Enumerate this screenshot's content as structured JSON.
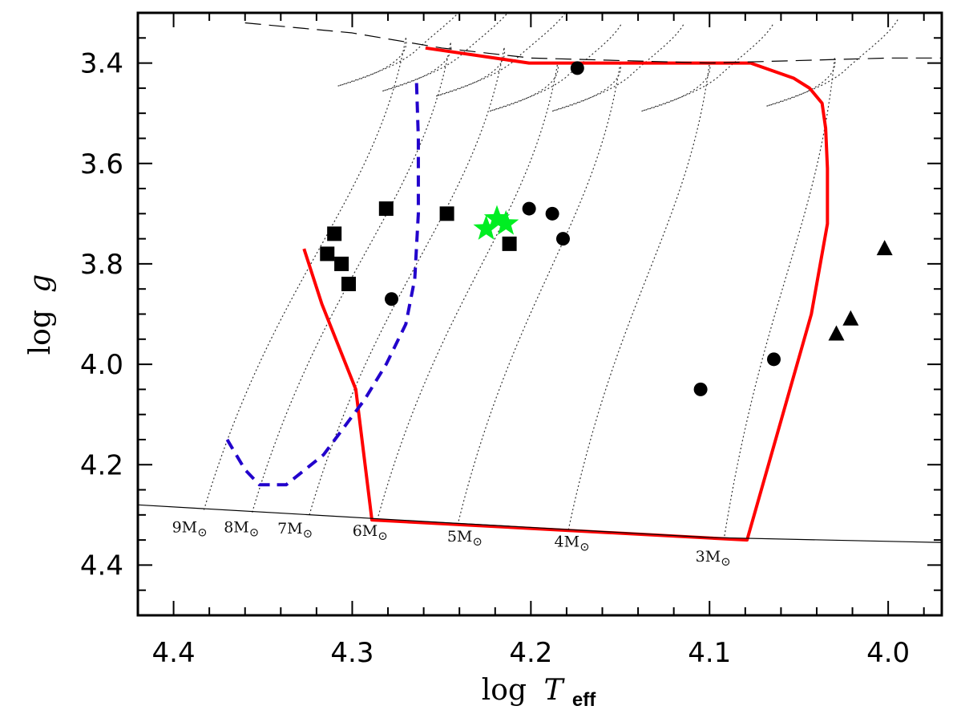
{
  "chart_data": {
    "type": "scatter",
    "title": "",
    "xlabel": {
      "prefix": "log",
      "symbol": "T",
      "subscript": "eff"
    },
    "ylabel": {
      "prefix": "log",
      "symbol": "g"
    },
    "xlim": [
      4.42,
      3.97
    ],
    "ylim": [
      4.5,
      3.3
    ],
    "x_reversed": true,
    "y_reversed": true,
    "x_ticks": [
      "4.4",
      "4.3",
      "4.2",
      "4.1",
      "4.0"
    ],
    "x_tick_values": [
      4.4,
      4.3,
      4.2,
      4.1,
      4.0
    ],
    "y_ticks": [
      "3.4",
      "3.6",
      "3.8",
      "4.0",
      "4.2",
      "4.4"
    ],
    "y_tick_values": [
      3.4,
      3.6,
      3.8,
      4.0,
      4.2,
      4.4
    ],
    "colors": {
      "axes": "#000000",
      "red_boundary": "#ff0000",
      "blue_dashed": "#2200cc",
      "star": "#00ee22",
      "markers": "#000000",
      "tracks": "#333333"
    },
    "series": [
      {
        "name": "squares",
        "marker": "square",
        "x": [
          4.281,
          4.247,
          4.212,
          4.31,
          4.314,
          4.306,
          4.302
        ],
        "y": [
          3.69,
          3.7,
          3.76,
          3.74,
          3.78,
          3.8,
          3.84
        ]
      },
      {
        "name": "circles",
        "marker": "circle",
        "x": [
          4.174,
          4.201,
          4.188,
          4.182,
          4.278,
          4.105,
          4.064
        ],
        "y": [
          3.41,
          3.69,
          3.7,
          3.75,
          3.87,
          4.05,
          3.99
        ]
      },
      {
        "name": "triangles",
        "marker": "triangle",
        "x": [
          4.002,
          4.021,
          4.029
        ],
        "y": [
          3.77,
          3.91,
          3.94
        ]
      },
      {
        "name": "stars",
        "marker": "star",
        "x": [
          4.225,
          4.219,
          4.214
        ],
        "y": [
          3.73,
          3.71,
          3.72
        ]
      }
    ],
    "lines": [
      {
        "name": "red-boundary",
        "style": "solid",
        "x": [
          4.327,
          4.317,
          4.298,
          4.289,
          4.079,
          4.043,
          4.034,
          4.034,
          4.035,
          4.037,
          4.044,
          4.053,
          4.077,
          4.159,
          4.201,
          4.259
        ],
        "y": [
          3.77,
          3.88,
          4.05,
          4.31,
          4.35,
          3.9,
          3.72,
          3.61,
          3.53,
          3.48,
          3.45,
          3.43,
          3.4,
          3.4,
          3.4,
          3.37
        ]
      },
      {
        "name": "blue-dashed-boundary",
        "style": "dashed",
        "x": [
          4.264,
          4.263,
          4.263,
          4.265,
          4.27,
          4.281,
          4.293,
          4.316,
          4.337,
          4.352,
          4.36,
          4.37
        ],
        "y": [
          3.44,
          3.55,
          3.7,
          3.83,
          3.92,
          4.0,
          4.07,
          4.18,
          4.24,
          4.24,
          4.21,
          4.15
        ]
      },
      {
        "name": "zams",
        "style": "solid",
        "x": [
          4.42,
          4.25,
          4.1,
          3.97
        ],
        "y": [
          4.28,
          4.315,
          4.345,
          4.355
        ]
      },
      {
        "name": "tams",
        "style": "long-dash",
        "x": [
          4.36,
          4.3,
          4.25,
          4.2,
          4.1,
          4.0,
          3.97
        ],
        "y": [
          3.32,
          3.34,
          3.37,
          3.39,
          3.4,
          3.39,
          3.39
        ]
      }
    ],
    "tracks": [
      {
        "label": "9M",
        "zams": [
          4.383,
          4.29
        ],
        "tams": [
          4.27,
          3.35
        ]
      },
      {
        "label": "8M",
        "zams": [
          4.356,
          4.295
        ],
        "tams": [
          4.245,
          3.36
        ]
      },
      {
        "label": "7M",
        "zams": [
          4.324,
          4.3
        ],
        "tams": [
          4.215,
          3.37
        ]
      },
      {
        "label": "6M",
        "zams": [
          4.286,
          4.31
        ],
        "tams": [
          4.185,
          3.4
        ]
      },
      {
        "label": "5M",
        "zams": [
          4.241,
          4.32
        ],
        "tams": [
          4.15,
          3.4
        ]
      },
      {
        "label": "4M",
        "zams": [
          4.179,
          4.33
        ],
        "tams": [
          4.1,
          3.4
        ]
      },
      {
        "label": "3M",
        "zams": [
          4.092,
          4.35
        ],
        "tams": [
          4.03,
          3.39
        ]
      }
    ],
    "track_labels": [
      {
        "text": "9M",
        "sun": "⊙",
        "x": 4.391,
        "y": 4.335
      },
      {
        "text": "8M",
        "sun": "⊙",
        "x": 4.362,
        "y": 4.335
      },
      {
        "text": "7M",
        "sun": "⊙",
        "x": 4.332,
        "y": 4.337
      },
      {
        "text": "6M",
        "sun": "⊙",
        "x": 4.29,
        "y": 4.342
      },
      {
        "text": "5M",
        "sun": "⊙",
        "x": 4.237,
        "y": 4.353
      },
      {
        "text": "4M",
        "sun": "⊙",
        "x": 4.177,
        "y": 4.363
      },
      {
        "text": "3M",
        "sun": "⊙",
        "x": 4.098,
        "y": 4.393
      }
    ],
    "legend": "none",
    "grid": false
  }
}
